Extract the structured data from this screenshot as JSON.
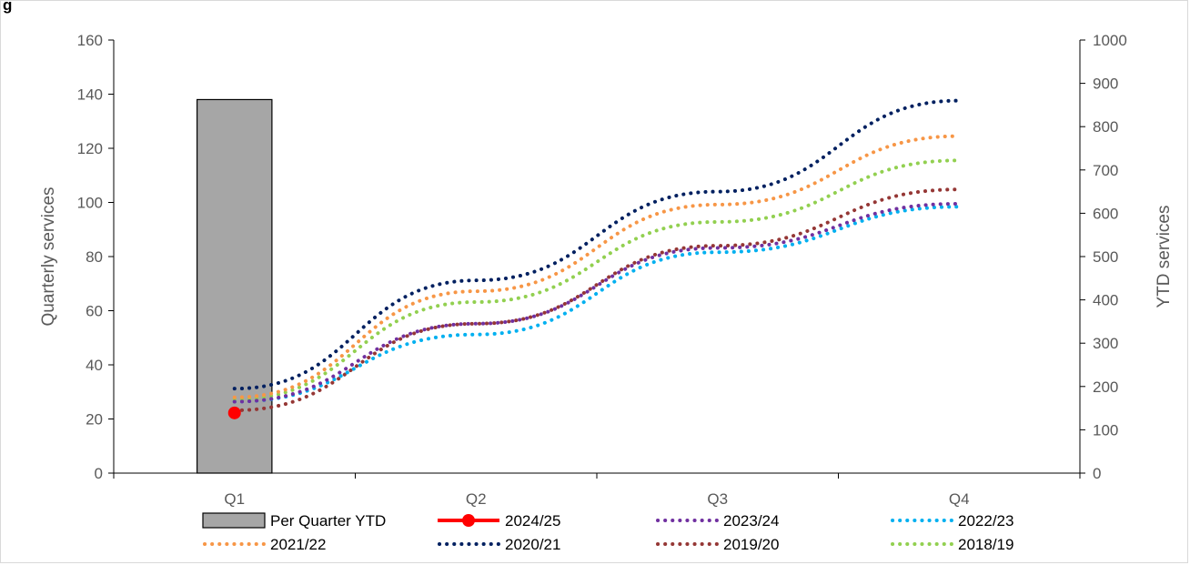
{
  "chart_data": {
    "type": "bar",
    "title": "",
    "title_fragment": "g",
    "categories": [
      "Q1",
      "Q2",
      "Q3",
      "Q4"
    ],
    "ylabel_left": "Quarterly  services",
    "ylabel_right": "YTD services",
    "ylim_left": [
      0,
      160
    ],
    "yticks_left": [
      0,
      20,
      40,
      60,
      80,
      100,
      120,
      140,
      160
    ],
    "ylim_right": [
      0,
      1000
    ],
    "yticks_right": [
      0,
      100,
      200,
      300,
      400,
      500,
      600,
      700,
      800,
      900,
      1000
    ],
    "grid": false,
    "legend_position": "bottom",
    "bars": {
      "name": "Per Quarter YTD",
      "axis": "left",
      "color": "#a6a6a6",
      "values": [
        138,
        null,
        null,
        null
      ]
    },
    "series": [
      {
        "name": "2024/25",
        "axis": "right",
        "style": "solid-marker",
        "color": "#ff0000",
        "values": [
          139,
          null,
          null,
          null
        ]
      },
      {
        "name": "2023/24",
        "axis": "right",
        "style": "dotted",
        "color": "#7030a0",
        "values": [
          165,
          345,
          520,
          622
        ]
      },
      {
        "name": "2022/23",
        "axis": "right",
        "style": "dotted",
        "color": "#00b0f0",
        "values": [
          165,
          320,
          510,
          615
        ]
      },
      {
        "name": "2021/22",
        "axis": "right",
        "style": "dotted",
        "color": "#f79646",
        "values": [
          175,
          420,
          620,
          778
        ]
      },
      {
        "name": "2020/21",
        "axis": "right",
        "style": "dotted",
        "color": "#002060",
        "values": [
          195,
          445,
          650,
          860
        ]
      },
      {
        "name": "2019/20",
        "axis": "right",
        "style": "dotted",
        "color": "#953735",
        "values": [
          145,
          345,
          525,
          655
        ]
      },
      {
        "name": "2018/19",
        "axis": "right",
        "style": "dotted",
        "color": "#92d050",
        "values": [
          170,
          395,
          580,
          722
        ]
      }
    ],
    "legend_order": [
      "Per Quarter YTD",
      "2024/25",
      "2023/24",
      "2022/23",
      "2021/22",
      "2020/21",
      "2019/20",
      "2018/19"
    ]
  }
}
